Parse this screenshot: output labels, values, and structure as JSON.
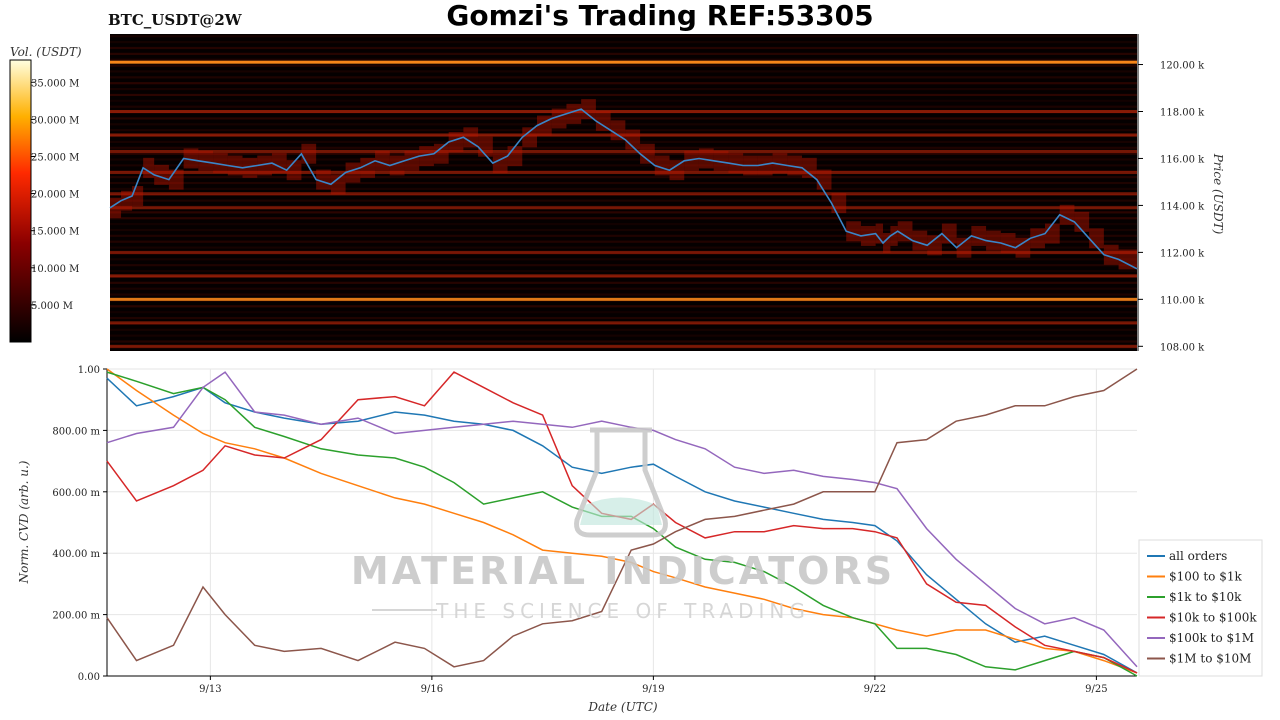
{
  "header": {
    "title": "Gomzi's Trading REF:53305",
    "symbol": "BTC_USDT@2W"
  },
  "watermark": {
    "line1": "MATERIAL INDICATORS",
    "line2": "THE SCIENCE OF TRADING"
  },
  "colors": {
    "price_line": "#3a86c8",
    "heatmap_bg": "#050000",
    "all_orders": "#1f77b4",
    "100_1k": "#ff7f0e",
    "1k_10k": "#2ca02c",
    "10k_100k": "#d62728",
    "100k_1M": "#9467bd",
    "1M_10M": "#8c564b"
  },
  "chart_data": [
    {
      "type": "heatmap",
      "colorbar": {
        "label": "Vol. (USDT)",
        "tick_labels": [
          "35.000 M",
          "30.000 M",
          "25.000 M",
          "20.000 M",
          "15.000 M",
          "10.000 M",
          "5.000 M"
        ],
        "ticks": [
          35,
          30,
          25,
          20,
          15,
          10,
          5
        ],
        "range": [
          0,
          38
        ]
      },
      "y_axis": {
        "label": "Price (USDT)",
        "tick_labels": [
          "120.00 k",
          "118.00 k",
          "116.00 k",
          "114.00 k",
          "112.00 k",
          "110.00 k",
          "108.00 k"
        ],
        "ticks": [
          120000,
          118000,
          116000,
          114000,
          112000,
          110000,
          108000
        ],
        "range": [
          107800,
          121300
        ]
      },
      "x_range": [
        11.6,
        25.55
      ],
      "price_series": {
        "x": [
          11.6,
          11.75,
          11.9,
          12.05,
          12.2,
          12.4,
          12.6,
          12.8,
          13.0,
          13.2,
          13.4,
          13.6,
          13.8,
          14.0,
          14.2,
          14.4,
          14.6,
          14.8,
          15.0,
          15.2,
          15.4,
          15.6,
          15.8,
          16.0,
          16.2,
          16.4,
          16.6,
          16.8,
          17.0,
          17.2,
          17.4,
          17.6,
          17.8,
          18.0,
          18.2,
          18.4,
          18.6,
          18.8,
          19.0,
          19.2,
          19.4,
          19.6,
          19.8,
          20.0,
          20.2,
          20.4,
          20.6,
          20.8,
          21.0,
          21.2,
          21.4,
          21.6,
          21.8,
          22.0,
          22.1,
          22.2,
          22.3,
          22.5,
          22.7,
          22.9,
          23.1,
          23.3,
          23.5,
          23.7,
          23.9,
          24.1,
          24.3,
          24.5,
          24.7,
          24.9,
          25.1,
          25.3,
          25.55
        ],
        "y": [
          113.9,
          114.2,
          114.4,
          115.6,
          115.3,
          115.1,
          116.0,
          115.9,
          115.8,
          115.7,
          115.6,
          115.7,
          115.8,
          115.5,
          116.2,
          115.1,
          114.9,
          115.4,
          115.6,
          115.9,
          115.7,
          115.9,
          116.1,
          116.2,
          116.7,
          116.9,
          116.5,
          115.8,
          116.1,
          116.9,
          117.4,
          117.7,
          117.9,
          118.1,
          117.6,
          117.2,
          116.8,
          116.2,
          115.7,
          115.5,
          115.9,
          116.0,
          115.9,
          115.8,
          115.7,
          115.7,
          115.8,
          115.7,
          115.6,
          115.1,
          114.1,
          112.9,
          112.7,
          112.8,
          112.4,
          112.7,
          112.9,
          112.5,
          112.3,
          112.8,
          112.2,
          112.7,
          112.5,
          112.4,
          112.2,
          112.6,
          112.8,
          113.6,
          113.3,
          112.6,
          111.9,
          111.7,
          111.3
        ]
      },
      "liquidity_levels": [
        {
          "price": 120100,
          "intensity": 0.72
        },
        {
          "price": 118000,
          "intensity": 0.38
        },
        {
          "price": 117000,
          "intensity": 0.35
        },
        {
          "price": 116300,
          "intensity": 0.3
        },
        {
          "price": 115400,
          "intensity": 0.28
        },
        {
          "price": 114500,
          "intensity": 0.26
        },
        {
          "price": 113900,
          "intensity": 0.3
        },
        {
          "price": 112000,
          "intensity": 0.28
        },
        {
          "price": 111000,
          "intensity": 0.36
        },
        {
          "price": 110000,
          "intensity": 0.62
        },
        {
          "price": 109000,
          "intensity": 0.3
        },
        {
          "price": 108000,
          "intensity": 0.3
        }
      ]
    },
    {
      "type": "line",
      "xlabel": "Date (UTC)",
      "ylabel": "Norm. CVD (arb. u.)",
      "ylim": [
        0,
        1
      ],
      "xlim": [
        11.6,
        25.55
      ],
      "x_ticks": [
        13,
        16,
        19,
        22,
        25
      ],
      "x_tick_labels": [
        "9/13",
        "9/16",
        "9/19",
        "9/22",
        "9/25"
      ],
      "y_ticks": [
        0,
        0.2,
        0.4,
        0.6,
        0.8,
        1.0
      ],
      "y_tick_labels": [
        "0.00",
        "200.00 m",
        "400.00 m",
        "600.00 m",
        "800.00 m",
        "1.00"
      ],
      "x": [
        11.6,
        12.0,
        12.5,
        12.9,
        13.2,
        13.6,
        14.0,
        14.5,
        15.0,
        15.5,
        15.9,
        16.3,
        16.7,
        17.1,
        17.5,
        17.9,
        18.3,
        18.7,
        19.0,
        19.3,
        19.7,
        20.1,
        20.5,
        20.9,
        21.3,
        21.7,
        22.0,
        22.3,
        22.7,
        23.1,
        23.5,
        23.9,
        24.3,
        24.7,
        25.1,
        25.55
      ],
      "series": [
        {
          "name": "all orders",
          "values": [
            0.97,
            0.88,
            0.91,
            0.94,
            0.89,
            0.86,
            0.84,
            0.82,
            0.83,
            0.86,
            0.85,
            0.83,
            0.82,
            0.8,
            0.75,
            0.68,
            0.66,
            0.68,
            0.69,
            0.65,
            0.6,
            0.57,
            0.55,
            0.53,
            0.51,
            0.5,
            0.49,
            0.44,
            0.33,
            0.25,
            0.17,
            0.11,
            0.13,
            0.1,
            0.07,
            0.01
          ]
        },
        {
          "name": "$100 to $1k",
          "values": [
            1.0,
            0.93,
            0.85,
            0.79,
            0.76,
            0.74,
            0.71,
            0.66,
            0.62,
            0.58,
            0.56,
            0.53,
            0.5,
            0.46,
            0.41,
            0.4,
            0.39,
            0.37,
            0.34,
            0.32,
            0.29,
            0.27,
            0.25,
            0.22,
            0.2,
            0.19,
            0.17,
            0.15,
            0.13,
            0.15,
            0.15,
            0.12,
            0.09,
            0.08,
            0.05,
            0.01
          ]
        },
        {
          "name": "$1k to $10k",
          "values": [
            0.99,
            0.96,
            0.92,
            0.94,
            0.9,
            0.81,
            0.78,
            0.74,
            0.72,
            0.71,
            0.68,
            0.63,
            0.56,
            0.58,
            0.6,
            0.55,
            0.52,
            0.52,
            0.48,
            0.42,
            0.38,
            0.37,
            0.34,
            0.29,
            0.23,
            0.19,
            0.17,
            0.09,
            0.09,
            0.07,
            0.03,
            0.02,
            0.05,
            0.08,
            0.06,
            0.0
          ]
        },
        {
          "name": "$10k to $100k",
          "values": [
            0.7,
            0.57,
            0.62,
            0.67,
            0.75,
            0.72,
            0.71,
            0.77,
            0.9,
            0.91,
            0.88,
            0.99,
            0.94,
            0.89,
            0.85,
            0.62,
            0.53,
            0.51,
            0.56,
            0.5,
            0.45,
            0.47,
            0.47,
            0.49,
            0.48,
            0.48,
            0.47,
            0.45,
            0.3,
            0.24,
            0.23,
            0.16,
            0.1,
            0.08,
            0.06,
            0.01
          ]
        },
        {
          "name": "$100k to $1M",
          "values": [
            0.76,
            0.79,
            0.81,
            0.94,
            0.99,
            0.86,
            0.85,
            0.82,
            0.84,
            0.79,
            0.8,
            0.81,
            0.82,
            0.83,
            0.82,
            0.81,
            0.83,
            0.81,
            0.8,
            0.77,
            0.74,
            0.68,
            0.66,
            0.67,
            0.65,
            0.64,
            0.63,
            0.61,
            0.48,
            0.38,
            0.3,
            0.22,
            0.17,
            0.19,
            0.15,
            0.03
          ]
        },
        {
          "name": "$1M to $10M",
          "values": [
            0.19,
            0.05,
            0.1,
            0.29,
            0.2,
            0.1,
            0.08,
            0.09,
            0.05,
            0.11,
            0.09,
            0.03,
            0.05,
            0.13,
            0.17,
            0.18,
            0.21,
            0.41,
            0.43,
            0.47,
            0.51,
            0.52,
            0.54,
            0.56,
            0.6,
            0.6,
            0.6,
            0.76,
            0.77,
            0.83,
            0.85,
            0.88,
            0.88,
            0.91,
            0.93,
            1.0
          ]
        }
      ],
      "legend_position": "right"
    }
  ]
}
